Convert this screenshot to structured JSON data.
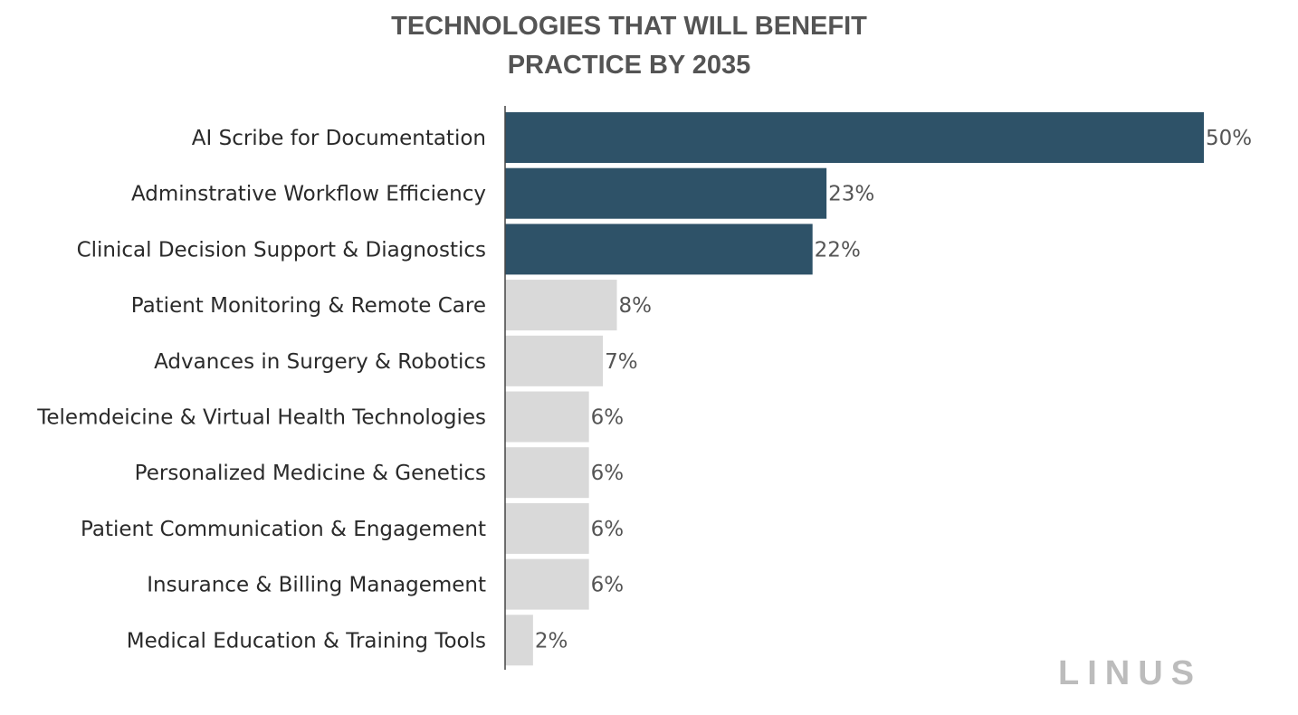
{
  "title_lines": [
    "TECHNOLOGIES THAT WILL BENEFIT",
    "PRACTICE BY 2035"
  ],
  "logo": "LINUS",
  "chart_data": {
    "type": "bar",
    "orientation": "horizontal",
    "title": "TECHNOLOGIES THAT WILL BENEFIT PRACTICE BY 2035",
    "xlabel": "",
    "ylabel": "",
    "xlim": [
      0,
      50
    ],
    "grid": false,
    "categories": [
      "AI Scribe for Documentation",
      "Adminstrative Workflow Efficiency",
      "Clinical Decision Support & Diagnostics",
      "Patient Monitoring & Remote Care",
      "Advances in Surgery & Robotics",
      "Telemdeicine & Virtual Health Technologies",
      "Personalized Medicine & Genetics",
      "Patient Communication & Engagement",
      "Insurance & Billing Management",
      "Medical Education & Training Tools"
    ],
    "values": [
      50,
      23,
      22,
      8,
      7,
      6,
      6,
      6,
      6,
      2
    ],
    "value_labels": [
      "50%",
      "23%",
      "22%",
      "8%",
      "7%",
      "6%",
      "6%",
      "6%",
      "6%",
      "2%"
    ],
    "highlighted_top_n": 3,
    "colors": {
      "highlight": "#2e5268",
      "default": "#d9d9d9",
      "axis": "#444444"
    }
  }
}
